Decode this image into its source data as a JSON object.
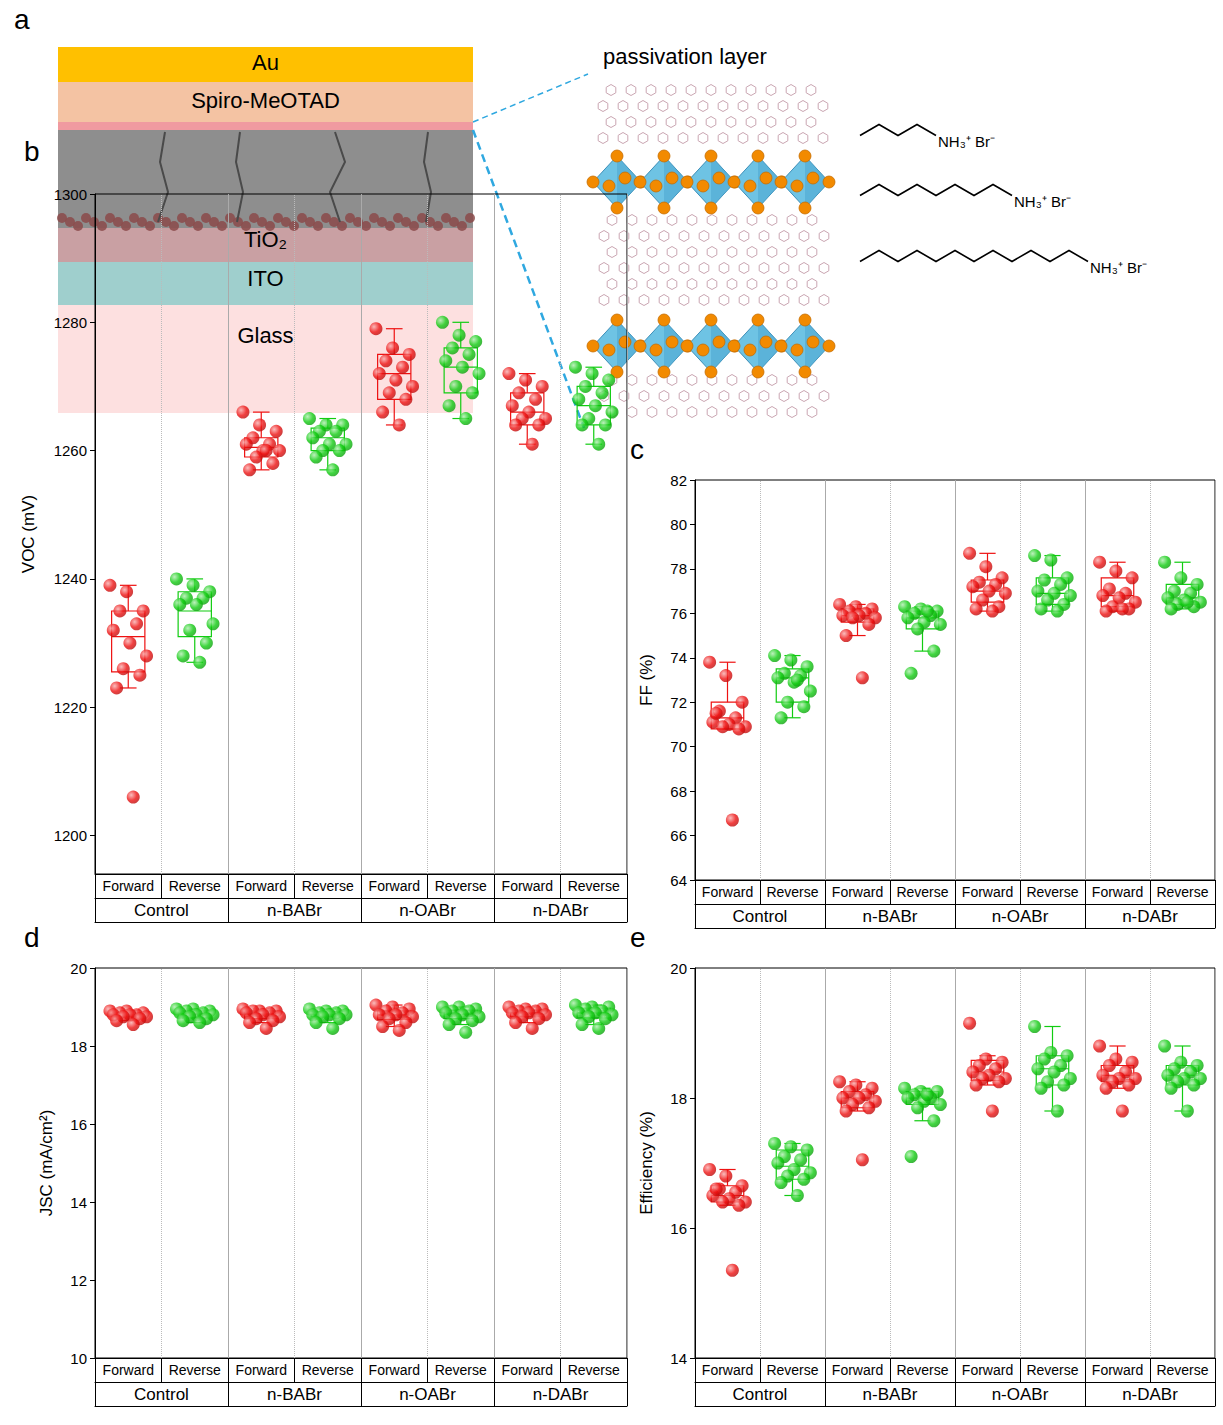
{
  "diagram": {
    "panel": "a",
    "layers": [
      "Au",
      "Spiro-MeOTAD",
      "TiO₂",
      "ITO",
      "Glass"
    ],
    "inset_title": "passivation layer",
    "molecules": [
      {
        "carbons": 4,
        "label": "NH₃⁺ Br⁻"
      },
      {
        "carbons": 8,
        "label": "NH₃⁺ Br⁻"
      },
      {
        "carbons": 12,
        "label": "NH₃⁺ Br⁻"
      }
    ]
  },
  "chart_data": [
    {
      "panel": "b",
      "type": "box",
      "y_label": "VOC (mV)",
      "categories": [
        "Forward",
        "Reverse",
        "Forward",
        "Reverse",
        "Forward",
        "Reverse",
        "Forward",
        "Reverse"
      ],
      "groups": [
        "Control",
        "n-BABr",
        "n-OABr",
        "n-DABr"
      ],
      "colors": [
        "#ee1111",
        "#11cc11",
        "#ee1111",
        "#11cc11",
        "#ee1111",
        "#11cc11",
        "#ee1111",
        "#11cc11"
      ],
      "marker": "circle",
      "grid": false,
      "ylim": [
        1194,
        1300
      ],
      "yticks": [
        1200,
        1220,
        1240,
        1260,
        1280,
        1300
      ],
      "values": [
        [
          1239,
          1238,
          1235,
          1235,
          1233,
          1232,
          1230,
          1228,
          1226,
          1225,
          1223,
          1206
        ],
        [
          1240,
          1239,
          1238,
          1237,
          1237,
          1236,
          1236,
          1233,
          1232,
          1230,
          1228,
          1227
        ],
        [
          1266,
          1264,
          1263,
          1262,
          1261,
          1261,
          1260,
          1260,
          1259,
          1258,
          1257,
          1260
        ],
        [
          1265,
          1264,
          1264,
          1263,
          1263,
          1262,
          1261,
          1261,
          1260,
          1260,
          1259,
          1257
        ],
        [
          1279,
          1276,
          1275,
          1274,
          1273,
          1272,
          1271,
          1270,
          1269,
          1268,
          1266,
          1264
        ],
        [
          1280,
          1278,
          1277,
          1276,
          1275,
          1274,
          1273,
          1272,
          1270,
          1269,
          1267,
          1265
        ],
        [
          1272,
          1271,
          1270,
          1269,
          1268,
          1267,
          1266,
          1265,
          1265,
          1264,
          1264,
          1261
        ],
        [
          1273,
          1272,
          1271,
          1270,
          1269,
          1268,
          1267,
          1266,
          1265,
          1264,
          1264,
          1261
        ]
      ],
      "boxes": [
        [
          1223,
          1225.5,
          1231,
          1235,
          1239
        ],
        [
          1227,
          1231,
          1235,
          1238,
          1240
        ],
        [
          1257,
          1259,
          1260.5,
          1262,
          1266
        ],
        [
          1257,
          1260,
          1262,
          1263.5,
          1265
        ],
        [
          1264,
          1268,
          1272,
          1275,
          1279
        ],
        [
          1265,
          1269,
          1273,
          1276,
          1280
        ],
        [
          1261,
          1264,
          1266,
          1269,
          1272
        ],
        [
          1261,
          1264,
          1267,
          1270,
          1273
        ]
      ]
    },
    {
      "panel": "c",
      "type": "box",
      "y_label": "FF (%)",
      "categories": [
        "Forward",
        "Reverse",
        "Forward",
        "Reverse",
        "Forward",
        "Reverse",
        "Forward",
        "Reverse"
      ],
      "groups": [
        "Control",
        "n-BABr",
        "n-OABr",
        "n-DABr"
      ],
      "colors": [
        "#ee1111",
        "#11cc11",
        "#ee1111",
        "#11cc11",
        "#ee1111",
        "#11cc11",
        "#ee1111",
        "#11cc11"
      ],
      "marker": "circle",
      "grid": false,
      "ylim": [
        64,
        82
      ],
      "yticks": [
        64,
        66,
        68,
        70,
        72,
        74,
        76,
        78,
        80,
        82
      ],
      "values": [
        [
          73.8,
          73.2,
          72.0,
          71.6,
          71.3,
          71.1,
          71.0,
          70.9,
          70.9,
          70.8,
          71.5,
          66.7
        ],
        [
          74.1,
          73.9,
          73.6,
          73.3,
          73.2,
          73.1,
          72.9,
          72.5,
          72.0,
          71.8,
          71.3,
          73.0
        ],
        [
          76.4,
          76.3,
          76.2,
          76.1,
          76.0,
          75.9,
          75.9,
          75.8,
          75.8,
          75.5,
          75.0,
          73.1
        ],
        [
          76.3,
          76.2,
          76.1,
          76.0,
          75.9,
          75.8,
          75.6,
          75.5,
          75.3,
          74.3,
          73.3,
          76.1
        ],
        [
          78.7,
          78.1,
          77.6,
          77.4,
          77.3,
          77.2,
          77.0,
          76.9,
          76.6,
          76.3,
          76.2,
          76.1
        ],
        [
          78.6,
          78.4,
          77.6,
          77.5,
          77.3,
          77.0,
          76.9,
          76.8,
          76.6,
          76.4,
          76.2,
          76.1
        ],
        [
          78.3,
          77.9,
          77.6,
          77.1,
          76.9,
          76.8,
          76.7,
          76.5,
          76.3,
          76.2,
          76.1,
          76.2
        ],
        [
          78.3,
          77.6,
          77.3,
          77.0,
          76.9,
          76.7,
          76.6,
          76.5,
          76.4,
          76.3,
          76.2,
          76.5
        ]
      ],
      "boxes": [
        [
          70.8,
          70.8,
          71.3,
          72.0,
          73.8
        ],
        [
          71.3,
          72.0,
          73.1,
          73.5,
          74.1
        ],
        [
          75.0,
          75.6,
          75.9,
          76.2,
          76.4
        ],
        [
          74.3,
          75.3,
          75.8,
          76.1,
          76.3
        ],
        [
          76.1,
          76.5,
          77.0,
          77.5,
          78.7
        ],
        [
          76.1,
          76.4,
          76.9,
          77.6,
          78.6
        ],
        [
          76.1,
          76.3,
          76.8,
          77.6,
          78.3
        ],
        [
          76.2,
          76.4,
          76.7,
          77.3,
          78.3
        ]
      ]
    },
    {
      "panel": "d",
      "type": "box",
      "y_label": "JSC (mA/cm²)",
      "categories": [
        "Forward",
        "Reverse",
        "Forward",
        "Reverse",
        "Forward",
        "Reverse",
        "Forward",
        "Reverse"
      ],
      "groups": [
        "Control",
        "n-BABr",
        "n-OABr",
        "n-DABr"
      ],
      "colors": [
        "#ee1111",
        "#11cc11",
        "#ee1111",
        "#11cc11",
        "#ee1111",
        "#11cc11",
        "#ee1111",
        "#11cc11"
      ],
      "marker": "circle",
      "grid": false,
      "ylim": [
        10,
        20
      ],
      "yticks": [
        10,
        12,
        14,
        16,
        18,
        20
      ],
      "values": [
        [
          18.9,
          18.9,
          18.85,
          18.85,
          18.8,
          18.8,
          18.8,
          18.75,
          18.75,
          18.7,
          18.65,
          18.55
        ],
        [
          18.95,
          18.95,
          18.9,
          18.9,
          18.85,
          18.85,
          18.8,
          18.8,
          18.75,
          18.7,
          18.65,
          18.6
        ],
        [
          18.95,
          18.9,
          18.9,
          18.9,
          18.85,
          18.85,
          18.8,
          18.75,
          18.7,
          18.65,
          18.6,
          18.45
        ],
        [
          18.95,
          18.9,
          18.9,
          18.85,
          18.85,
          18.8,
          18.8,
          18.8,
          18.75,
          18.7,
          18.6,
          18.45
        ],
        [
          19.05,
          19.0,
          18.95,
          18.9,
          18.85,
          18.8,
          18.8,
          18.75,
          18.7,
          18.6,
          18.5,
          18.4
        ],
        [
          19.0,
          19.0,
          18.95,
          18.9,
          18.9,
          18.85,
          18.8,
          18.75,
          18.7,
          18.65,
          18.55,
          18.35
        ],
        [
          19.0,
          18.95,
          18.95,
          18.9,
          18.9,
          18.85,
          18.85,
          18.8,
          18.75,
          18.7,
          18.6,
          18.45
        ],
        [
          19.05,
          19.0,
          19.0,
          18.95,
          18.9,
          18.85,
          18.85,
          18.8,
          18.75,
          18.7,
          18.55,
          18.45
        ]
      ],
      "boxes": [
        [
          18.65,
          18.75,
          18.8,
          18.85,
          18.9
        ],
        [
          18.6,
          18.72,
          18.82,
          18.9,
          18.95
        ],
        [
          18.6,
          18.7,
          18.82,
          18.9,
          18.95
        ],
        [
          18.6,
          18.75,
          18.8,
          18.88,
          18.95
        ],
        [
          18.5,
          18.68,
          18.8,
          18.9,
          19.05
        ],
        [
          18.55,
          18.7,
          18.82,
          18.92,
          19.0
        ],
        [
          18.6,
          18.75,
          18.85,
          18.92,
          19.0
        ],
        [
          18.55,
          18.72,
          18.85,
          18.97,
          19.05
        ]
      ]
    },
    {
      "panel": "e",
      "type": "box",
      "y_label": "Efficiency (%)",
      "categories": [
        "Forward",
        "Reverse",
        "Forward",
        "Reverse",
        "Forward",
        "Reverse",
        "Forward",
        "Reverse"
      ],
      "groups": [
        "Control",
        "n-BABr",
        "n-OABr",
        "n-DABr"
      ],
      "colors": [
        "#ee1111",
        "#11cc11",
        "#ee1111",
        "#11cc11",
        "#ee1111",
        "#11cc11",
        "#ee1111",
        "#11cc11"
      ],
      "marker": "circle",
      "grid": false,
      "ylim": [
        14,
        20
      ],
      "yticks": [
        14,
        16,
        18,
        20
      ],
      "values": [
        [
          16.9,
          16.8,
          16.65,
          16.6,
          16.55,
          16.5,
          16.45,
          16.4,
          16.4,
          16.35,
          16.6,
          15.35
        ],
        [
          17.3,
          17.25,
          17.2,
          17.1,
          17.05,
          17.0,
          16.9,
          16.85,
          16.8,
          16.75,
          16.7,
          16.5
        ],
        [
          18.25,
          18.2,
          18.15,
          18.1,
          18.05,
          18.0,
          18.0,
          17.95,
          17.9,
          17.85,
          17.8,
          17.05
        ],
        [
          18.15,
          18.1,
          18.1,
          18.05,
          18.0,
          18.0,
          17.95,
          17.9,
          17.85,
          17.65,
          17.1,
          18.05
        ],
        [
          19.15,
          18.6,
          18.55,
          18.5,
          18.45,
          18.4,
          18.35,
          18.3,
          18.3,
          18.25,
          18.2,
          17.8
        ],
        [
          19.1,
          18.7,
          18.65,
          18.6,
          18.5,
          18.45,
          18.4,
          18.3,
          18.25,
          18.2,
          18.15,
          17.8
        ],
        [
          18.8,
          18.6,
          18.55,
          18.5,
          18.4,
          18.35,
          18.3,
          18.3,
          18.25,
          18.2,
          18.15,
          17.8
        ],
        [
          18.8,
          18.55,
          18.5,
          18.45,
          18.4,
          18.35,
          18.3,
          18.3,
          18.25,
          18.2,
          18.15,
          17.8
        ]
      ],
      "boxes": [
        [
          16.35,
          16.4,
          16.5,
          16.65,
          16.9
        ],
        [
          16.5,
          16.75,
          16.95,
          17.2,
          17.3
        ],
        [
          17.8,
          17.85,
          18.0,
          18.1,
          18.25
        ],
        [
          17.65,
          17.9,
          18.0,
          18.1,
          18.15
        ],
        [
          18.2,
          18.27,
          18.4,
          18.58,
          18.65
        ],
        [
          17.8,
          18.2,
          18.45,
          18.65,
          19.1
        ],
        [
          18.15,
          18.25,
          18.35,
          18.5,
          18.8
        ],
        [
          17.8,
          18.2,
          18.35,
          18.5,
          18.8
        ]
      ]
    }
  ]
}
